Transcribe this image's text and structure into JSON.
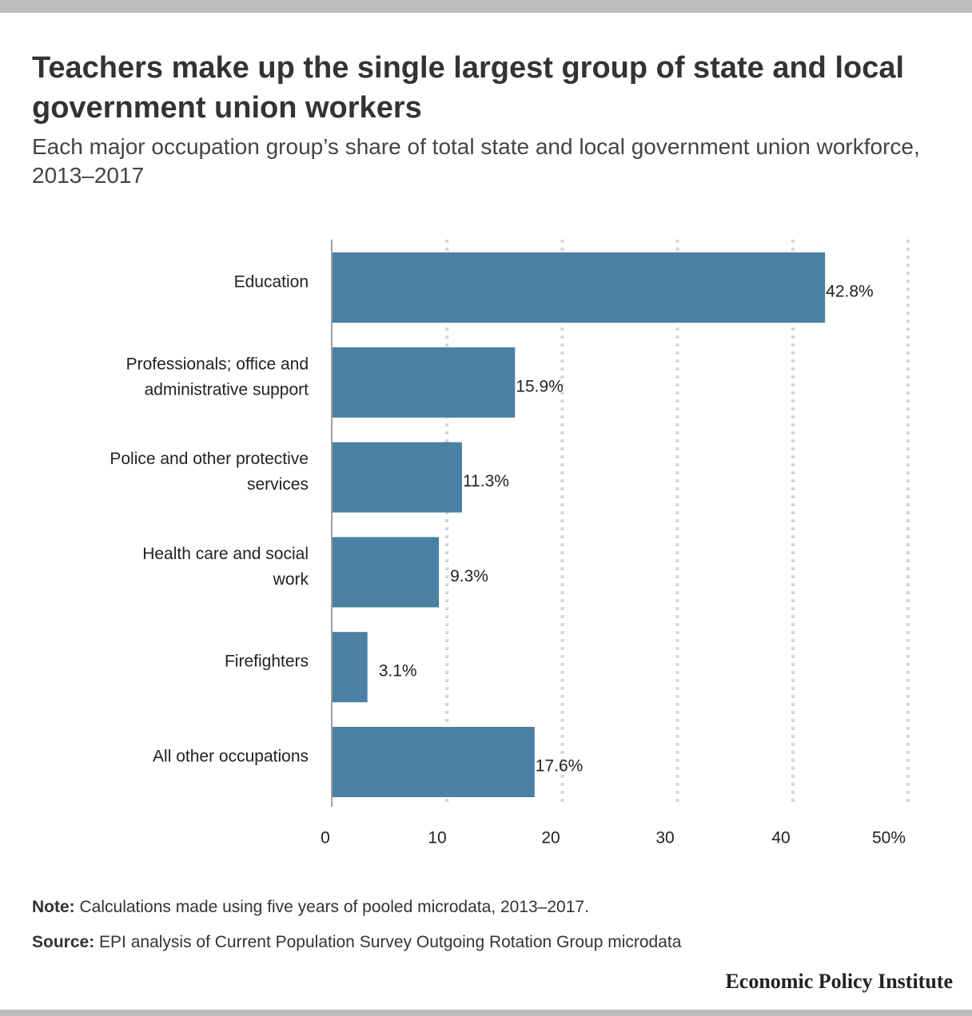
{
  "header": {
    "title": "Teachers make up the single largest group of state and local government union workers",
    "subtitle": "Each major occupation group’s share of total state and local government union workforce, 2013–2017"
  },
  "chart_data": {
    "type": "bar",
    "orientation": "horizontal",
    "categories": [
      [
        "Education"
      ],
      [
        "Professionals; office and",
        "administrative support"
      ],
      [
        "Police and other protective",
        "services"
      ],
      [
        "Health care and social",
        "work"
      ],
      [
        "Firefighters"
      ],
      [
        "All other occupations"
      ]
    ],
    "values": [
      42.8,
      15.9,
      11.3,
      9.3,
      3.1,
      17.6
    ],
    "value_labels": [
      "42.8%",
      "15.9%",
      "11.3%",
      "9.3%",
      "3.1%",
      "17.6%"
    ],
    "xlim": [
      0,
      50
    ],
    "ticks": [
      0,
      10,
      20,
      30,
      40,
      50
    ],
    "tick_labels": [
      "0",
      "10",
      "20",
      "30",
      "40",
      "50%"
    ],
    "bar_color": "#4a80a3",
    "grid": "vertical dotted"
  },
  "footer": {
    "note_label": "Note:",
    "note_text": " Calculations made using five years of pooled microdata, 2013–2017.",
    "source_label": "Source:",
    "source_text": " EPI analysis of Current Population Survey Outgoing Rotation Group microdata",
    "brand": "Economic Policy Institute"
  }
}
